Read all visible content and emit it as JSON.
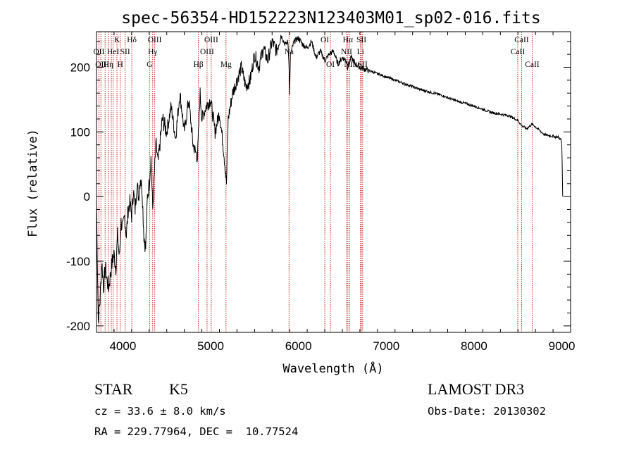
{
  "chart_data": {
    "type": "line",
    "title": "spec-56354-HD152223N123403M01_sp02-016.fits",
    "xlabel": "Wavelength (Å)",
    "ylabel": "Flux (relative)",
    "xlim": [
      3700,
      9100
    ],
    "ylim": [
      -210,
      255
    ],
    "xticks": [
      4000,
      5000,
      6000,
      7000,
      8000,
      9000
    ],
    "yticks": [
      -200,
      -100,
      0,
      100,
      200
    ],
    "colors": {
      "spectrum": "#000000",
      "lines": "#cc2222",
      "axes": "#000000"
    },
    "spectrum": {
      "x": [
        3700,
        3720,
        3740,
        3760,
        3780,
        3800,
        3820,
        3840,
        3860,
        3880,
        3900,
        3920,
        3940,
        3960,
        3980,
        4000,
        4020,
        4040,
        4060,
        4080,
        4100,
        4120,
        4140,
        4160,
        4180,
        4200,
        4220,
        4240,
        4260,
        4280,
        4300,
        4320,
        4340,
        4360,
        4380,
        4400,
        4450,
        4500,
        4550,
        4600,
        4650,
        4700,
        4750,
        4800,
        4850,
        4880,
        4900,
        4950,
        5000,
        5050,
        5100,
        5150,
        5180,
        5200,
        5250,
        5300,
        5350,
        5400,
        5450,
        5500,
        5550,
        5600,
        5650,
        5700,
        5750,
        5800,
        5850,
        5880,
        5890,
        5900,
        5910,
        5950,
        6000,
        6050,
        6100,
        6150,
        6200,
        6250,
        6300,
        6350,
        6400,
        6450,
        6500,
        6550,
        6560,
        6600,
        6650,
        6700,
        6800,
        6900,
        7000,
        7200,
        7400,
        7600,
        7800,
        8000,
        8200,
        8400,
        8498,
        8542,
        8600,
        8662,
        8700,
        8800,
        8900,
        8960,
        8990,
        9000,
        9010
      ],
      "y": [
        -10,
        -190,
        -160,
        -100,
        -140,
        -110,
        -130,
        -140,
        -120,
        -100,
        -90,
        -110,
        -60,
        -95,
        -40,
        -50,
        -30,
        -60,
        -20,
        -10,
        -30,
        10,
        -20,
        20,
        0,
        30,
        10,
        -60,
        -80,
        0,
        20,
        60,
        -20,
        40,
        80,
        50,
        120,
        100,
        140,
        90,
        160,
        100,
        150,
        80,
        60,
        160,
        120,
        140,
        150,
        100,
        130,
        70,
        20,
        120,
        160,
        180,
        200,
        170,
        180,
        220,
        200,
        230,
        210,
        240,
        225,
        250,
        235,
        240,
        215,
        160,
        220,
        240,
        245,
        235,
        230,
        240,
        215,
        225,
        210,
        220,
        225,
        205,
        215,
        210,
        200,
        215,
        205,
        200,
        195,
        190,
        185,
        175,
        165,
        158,
        148,
        140,
        130,
        125,
        118,
        110,
        105,
        112,
        108,
        96,
        93,
        92,
        88,
        80,
        0
      ]
    },
    "lines": [
      {
        "w": 3727,
        "label": "OII",
        "row": 2
      },
      {
        "w": 3750,
        "label": "OII",
        "row": 3
      },
      {
        "w": 3798,
        "label": "",
        "row": 0
      },
      {
        "w": 3835,
        "label": "Hη",
        "row": 3
      },
      {
        "w": 3869,
        "label": "",
        "row": 0
      },
      {
        "w": 3889,
        "label": "HeI",
        "row": 2
      },
      {
        "w": 3933,
        "label": "K",
        "row": 1
      },
      {
        "w": 3970,
        "label": "H",
        "row": 3
      },
      {
        "w": 4026,
        "label": "SII",
        "row": 2
      },
      {
        "w": 4102,
        "label": "Hδ",
        "row": 1
      },
      {
        "w": 4304,
        "label": "G",
        "row": 3
      },
      {
        "w": 4340,
        "label": "Hγ",
        "row": 2
      },
      {
        "w": 4363,
        "label": "OIII",
        "row": 1
      },
      {
        "w": 4861,
        "label": "Hβ",
        "row": 3
      },
      {
        "w": 4959,
        "label": "OIII",
        "row": 2
      },
      {
        "w": 5007,
        "label": "OIII",
        "row": 1
      },
      {
        "w": 5175,
        "label": "Mg",
        "row": 3
      },
      {
        "w": 5893,
        "label": "Na",
        "row": 2
      },
      {
        "w": 6300,
        "label": "OI",
        "row": 1
      },
      {
        "w": 6364,
        "label": "OI",
        "row": 3
      },
      {
        "w": 6548,
        "label": "NII",
        "row": 2
      },
      {
        "w": 6563,
        "label": "Hα",
        "row": 1
      },
      {
        "w": 6583,
        "label": "NII",
        "row": 3
      },
      {
        "w": 6707,
        "label": "Li",
        "row": 2
      },
      {
        "w": 6717,
        "label": "SII",
        "row": 1
      },
      {
        "w": 6731,
        "label": "SII",
        "row": 3
      },
      {
        "w": 8498,
        "label": "CaII",
        "row": 2
      },
      {
        "w": 8542,
        "label": "CaII",
        "row": 1
      },
      {
        "w": 8662,
        "label": "CaII",
        "row": 3
      }
    ]
  },
  "info": {
    "object_class": "STAR",
    "subclass": "K5",
    "redshift": "cz = 33.6 ± 8.0 km/s",
    "coords": "RA = 229.77964, DEC =  10.77524",
    "survey": "LAMOST DR3",
    "obs_date": "Obs-Date: 20130302"
  }
}
